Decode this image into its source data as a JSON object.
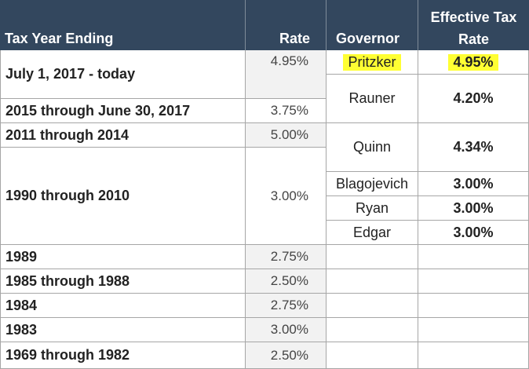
{
  "headers": {
    "tax_year": "Tax Year Ending",
    "rate": "Rate",
    "governor": "Governor",
    "effective": "Effective Tax Rate"
  },
  "years": [
    {
      "label": "July 1, 2017 - today",
      "rate": "4.95%"
    },
    {
      "label": "2015 through June 30, 2017",
      "rate": "3.75%"
    },
    {
      "label": "2011 through 2014",
      "rate": "5.00%"
    },
    {
      "label": "1990 through 2010",
      "rate": "3.00%"
    },
    {
      "label": "1989",
      "rate": "2.75%"
    },
    {
      "label": "1985 through 1988",
      "rate": "2.50%"
    },
    {
      "label": "1984",
      "rate": "2.75%"
    },
    {
      "label": "1983",
      "rate": "3.00%"
    },
    {
      "label": "1969 through 1982",
      "rate": "2.50%"
    }
  ],
  "governors": [
    {
      "name": "Pritzker",
      "effective": "4.95%"
    },
    {
      "name": "Rauner",
      "effective": "4.20%"
    },
    {
      "name": "Quinn",
      "effective": "4.34%"
    },
    {
      "name": "Blagojevich",
      "effective": "3.00%"
    },
    {
      "name": "Ryan",
      "effective": "3.00%"
    },
    {
      "name": "Edgar",
      "effective": "3.00%"
    }
  ],
  "colors": {
    "header_bg": "#33475e",
    "highlight": "#ffff33",
    "shaded_cell": "#f2f2f2"
  }
}
